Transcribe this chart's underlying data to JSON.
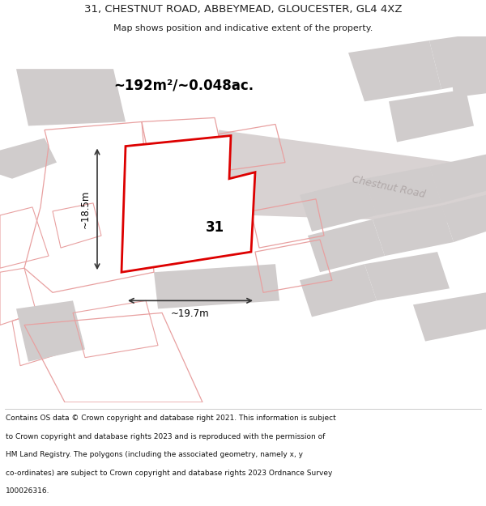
{
  "title_line1": "31, CHESTNUT ROAD, ABBEYMEAD, GLOUCESTER, GL4 4XZ",
  "title_line2": "Map shows position and indicative extent of the property.",
  "area_label": "~192m²/~0.048ac.",
  "width_label": "~19.7m",
  "height_label": "~18.5m",
  "number_label": "31",
  "road_label": "Chestnut Road",
  "footer_lines": [
    "Contains OS data © Crown copyright and database right 2021. This information is subject",
    "to Crown copyright and database rights 2023 and is reproduced with the permission of",
    "HM Land Registry. The polygons (including the associated geometry, namely x, y",
    "co-ordinates) are subject to Crown copyright and database rights 2023 Ordnance Survey",
    "100026316."
  ],
  "bg_color": "#ffffff",
  "map_bg_color": "#ffffff",
  "main_poly_color": "#dd0000",
  "building_fill": "#e0d8d8",
  "building_stroke": "#e8a0a0",
  "road_fill": "#d8d0d0",
  "gray_fill": "#d0cccc"
}
